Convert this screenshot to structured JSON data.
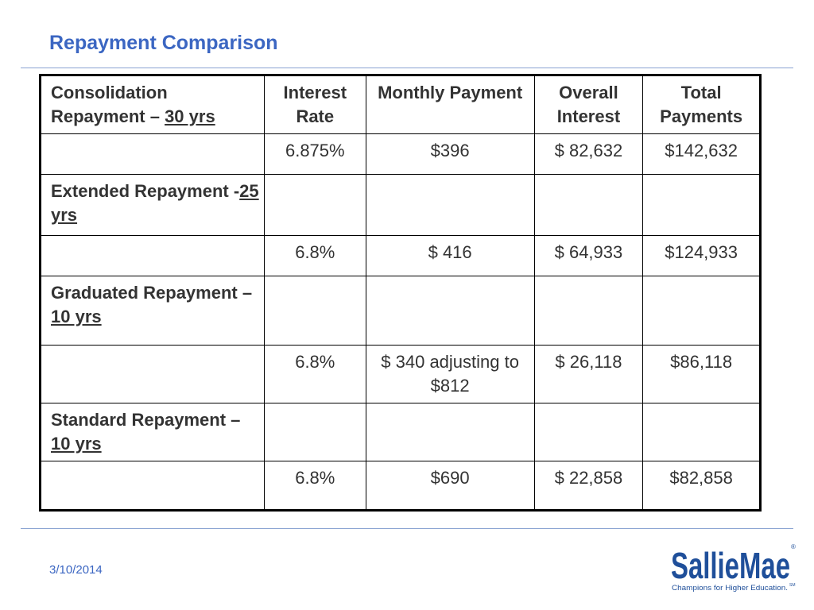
{
  "title": "Repayment Comparison",
  "date": "3/10/2014",
  "logo": {
    "name": "SallieMae",
    "registered_mark": "®",
    "tagline": "Champions for Higher Education.",
    "tagline_mark": "SM"
  },
  "table": {
    "header": {
      "plan_prefix": "Consolidation Repayment – ",
      "plan_term": "30 yrs",
      "interest_rate": "Interest Rate",
      "monthly_payment": "Monthly Payment",
      "overall_interest": "Overall Interest",
      "total_payments": "Total Payments"
    },
    "rows": [
      {
        "interest_rate": "6.875%",
        "monthly_payment": "$396",
        "overall_interest": "$ 82,632",
        "total_payments": "$142,632"
      },
      {
        "plan_prefix": "Extended Repayment -",
        "plan_term": "25 yrs"
      },
      {
        "interest_rate": "6.8%",
        "monthly_payment": "$ 416",
        "overall_interest": "$ 64,933",
        "total_payments": "$124,933"
      },
      {
        "plan_prefix": "Graduated Repayment – ",
        "plan_term": "10 yrs"
      },
      {
        "interest_rate": "6.8%",
        "monthly_payment": "$ 340 adjusting to $812",
        "overall_interest": "$ 26,118",
        "total_payments": "$86,118"
      },
      {
        "plan_prefix": "Standard Repayment – ",
        "plan_term": "10 yrs"
      },
      {
        "interest_rate": "6.8%",
        "monthly_payment": "$690",
        "overall_interest": "$ 22,858",
        "total_payments": "$82,858"
      }
    ]
  },
  "colors": {
    "title": "#3b66c2",
    "rule": "#8aa3d2",
    "logo": "#1f4f9a"
  }
}
